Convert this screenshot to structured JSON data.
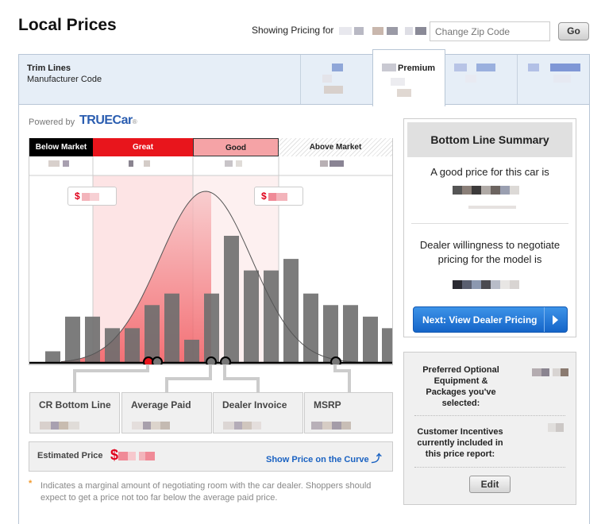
{
  "page": {
    "title": "Local Prices",
    "showing_label": "Showing Pricing for",
    "zip_placeholder": "Change Zip Code",
    "go_label": "Go"
  },
  "tabs": {
    "header_trim": "Trim Lines",
    "header_code": "Manufacturer Code",
    "active_label": "Premium"
  },
  "branding": {
    "powered_by": "Powered by",
    "logo": "TRUECar",
    "logo_mark": "®"
  },
  "zones": [
    "Below Market",
    "Great",
    "Good",
    "Above Market"
  ],
  "markers": {
    "dollar_sign": "$"
  },
  "price_cards": [
    "CR Bottom Line",
    "Average Paid",
    "Dealer Invoice",
    "MSRP"
  ],
  "estimated": {
    "label": "Estimated Price",
    "dollar": "$",
    "link": "Show Price on the Curve"
  },
  "summary": {
    "title": "Bottom Line Summary",
    "good_price": "A good price for this car is",
    "negotiate": "Dealer willingness to negotiate pricing for the model is",
    "next_button": "Next: View Dealer Pricing"
  },
  "options": {
    "equipment": "Preferred Optional Equipment & Packages you've selected:",
    "incentives": "Customer Incentives currently included in this price report:",
    "edit": "Edit"
  },
  "footnote": {
    "star": "*",
    "text": "Indicates a marginal amount of negotiating room with the car dealer. Shoppers should expect to get a price not too far below the average paid price."
  },
  "colors": {
    "great": "#e8151c",
    "good": "#f5a3a6",
    "accent": "#1a62c2",
    "bar": "#6e6e6e"
  },
  "chart_data": {
    "type": "bar",
    "title": "",
    "values": [
      1,
      4,
      4,
      3,
      3,
      5,
      6,
      2,
      6,
      11,
      8,
      8,
      9,
      6,
      5,
      5,
      4,
      3
    ],
    "curve": "bell"
  }
}
